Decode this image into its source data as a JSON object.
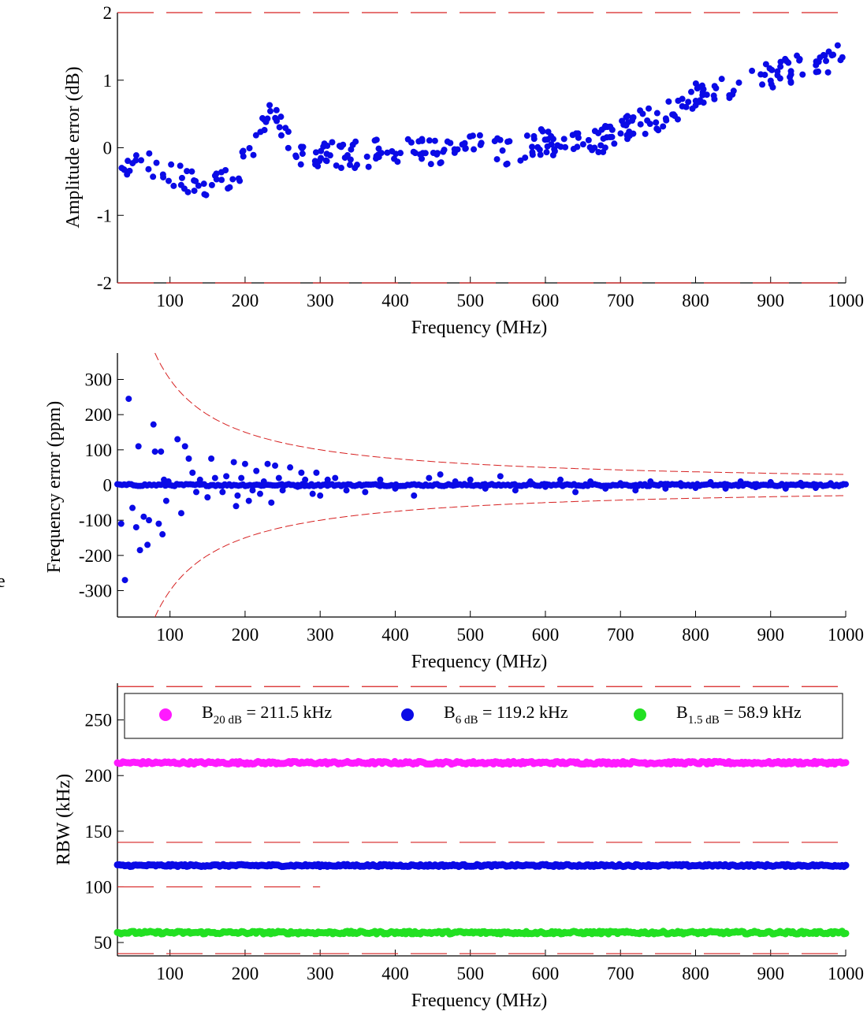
{
  "colors": {
    "limit_line": "#d62020",
    "blue": "#0a0ae6",
    "magenta": "#ff1aff",
    "green": "#22e022",
    "axis": "#000000"
  },
  "chart_data": [
    {
      "type": "scatter",
      "title": "",
      "xlabel": "Frequency (MHz)",
      "ylabel": "Amplitude error (dB)",
      "xlim": [
        30,
        1000
      ],
      "ylim": [
        -2,
        2
      ],
      "xticks": [
        100,
        200,
        300,
        400,
        500,
        600,
        700,
        800,
        900,
        1000
      ],
      "yticks": [
        -2,
        -1,
        0,
        1,
        2
      ],
      "grid": false,
      "color": "#0a0ae6",
      "limits": [
        2,
        -2
      ],
      "trend": [
        [
          30,
          -0.25
        ],
        [
          60,
          -0.25
        ],
        [
          100,
          -0.35
        ],
        [
          130,
          -0.55
        ],
        [
          160,
          -0.55
        ],
        [
          190,
          -0.35
        ],
        [
          210,
          0.05
        ],
        [
          225,
          0.4
        ],
        [
          235,
          0.55
        ],
        [
          250,
          0.25
        ],
        [
          270,
          -0.1
        ],
        [
          300,
          -0.1
        ],
        [
          350,
          -0.1
        ],
        [
          400,
          -0.05
        ],
        [
          450,
          -0.05
        ],
        [
          500,
          0.0
        ],
        [
          550,
          -0.05
        ],
        [
          600,
          0.1
        ],
        [
          650,
          0.0
        ],
        [
          700,
          0.25
        ],
        [
          750,
          0.45
        ],
        [
          800,
          0.75
        ],
        [
          850,
          0.95
        ],
        [
          900,
          1.05
        ],
        [
          950,
          1.25
        ],
        [
          1000,
          1.35
        ]
      ],
      "spread": 0.2,
      "n_points": 330
    },
    {
      "type": "scatter",
      "title": "",
      "xlabel": "Frequency (MHz)",
      "ylabel": "Frequency error (ppm)",
      "xlim": [
        30,
        1000
      ],
      "ylim": [
        -375,
        375
      ],
      "xticks": [
        100,
        200,
        300,
        400,
        500,
        600,
        700,
        800,
        900,
        1000
      ],
      "yticks": [
        -300,
        -200,
        -100,
        0,
        100,
        200,
        300
      ],
      "grid": false,
      "color": "#0a0ae6",
      "limit_curve": "±30000/f (ppm)",
      "limit_constant": 30000,
      "points": [
        [
          35,
          -110
        ],
        [
          45,
          245
        ],
        [
          40,
          -270
        ],
        [
          50,
          -65
        ],
        [
          58,
          110
        ],
        [
          55,
          -120
        ],
        [
          60,
          -185
        ],
        [
          65,
          -90
        ],
        [
          70,
          -170
        ],
        [
          72,
          -100
        ],
        [
          78,
          172
        ],
        [
          80,
          95
        ],
        [
          85,
          -110
        ],
        [
          88,
          95
        ],
        [
          90,
          -140
        ],
        [
          92,
          15
        ],
        [
          95,
          -45
        ],
        [
          98,
          10
        ],
        [
          110,
          130
        ],
        [
          115,
          -80
        ],
        [
          120,
          110
        ],
        [
          125,
          75
        ],
        [
          130,
          35
        ],
        [
          135,
          -20
        ],
        [
          140,
          15
        ],
        [
          150,
          -35
        ],
        [
          155,
          75
        ],
        [
          160,
          20
        ],
        [
          170,
          -20
        ],
        [
          175,
          25
        ],
        [
          185,
          65
        ],
        [
          188,
          -60
        ],
        [
          190,
          -30
        ],
        [
          195,
          20
        ],
        [
          200,
          60
        ],
        [
          205,
          -45
        ],
        [
          210,
          -15
        ],
        [
          215,
          40
        ],
        [
          220,
          -25
        ],
        [
          225,
          10
        ],
        [
          230,
          60
        ],
        [
          235,
          -50
        ],
        [
          240,
          55
        ],
        [
          245,
          20
        ],
        [
          250,
          -15
        ],
        [
          260,
          50
        ],
        [
          270,
          -5
        ],
        [
          275,
          35
        ],
        [
          280,
          15
        ],
        [
          290,
          -25
        ],
        [
          295,
          35
        ],
        [
          300,
          -30
        ],
        [
          310,
          15
        ],
        [
          320,
          20
        ],
        [
          335,
          -15
        ],
        [
          360,
          -20
        ],
        [
          380,
          15
        ],
        [
          400,
          -10
        ],
        [
          425,
          -30
        ],
        [
          445,
          20
        ],
        [
          460,
          30
        ],
        [
          480,
          10
        ],
        [
          500,
          15
        ],
        [
          520,
          -10
        ],
        [
          540,
          25
        ],
        [
          560,
          -15
        ],
        [
          580,
          10
        ],
        [
          600,
          -5
        ],
        [
          620,
          15
        ],
        [
          640,
          -20
        ],
        [
          660,
          10
        ],
        [
          680,
          -10
        ],
        [
          700,
          5
        ],
        [
          720,
          -15
        ],
        [
          740,
          10
        ],
        [
          760,
          -10
        ],
        [
          780,
          5
        ],
        [
          800,
          -8
        ],
        [
          820,
          8
        ],
        [
          840,
          -10
        ],
        [
          860,
          10
        ],
        [
          880,
          -6
        ],
        [
          900,
          8
        ],
        [
          920,
          -10
        ],
        [
          940,
          6
        ],
        [
          960,
          -8
        ],
        [
          980,
          5
        ],
        [
          995,
          0
        ]
      ],
      "zero_line_points": 320
    },
    {
      "type": "scatter",
      "title": "",
      "xlabel": "Frequency (MHz)",
      "ylabel": "RBW (kHz)",
      "xlim": [
        30,
        1000
      ],
      "ylim": [
        38,
        283
      ],
      "xticks": [
        100,
        200,
        300,
        400,
        500,
        600,
        700,
        800,
        900,
        1000
      ],
      "yticks": [
        50,
        100,
        150,
        200,
        250
      ],
      "grid": false,
      "legend_position": "top",
      "series": [
        {
          "name": "B",
          "sub": "20 dB",
          "value_text": " = 211.5 kHz",
          "mean": 211.5,
          "jitter": 1.2,
          "color": "#ff1aff",
          "n_points": 400
        },
        {
          "name": "B",
          "sub": "6 dB",
          "value_text": " = 119.2 kHz",
          "mean": 119.2,
          "jitter": 0.9,
          "color": "#0a0ae6",
          "n_points": 400
        },
        {
          "name": "B",
          "sub": "1.5 dB",
          "value_text": " = 58.9 kHz",
          "mean": 58.9,
          "jitter": 1.2,
          "color": "#22e022",
          "n_points": 400
        }
      ],
      "limit_lines": [
        {
          "y": 280,
          "x": [
            30,
            1000
          ]
        },
        {
          "y": 140,
          "x": [
            30,
            1000
          ]
        },
        {
          "y": 100,
          "x": [
            30,
            300
          ]
        },
        {
          "y": 40,
          "x": [
            30,
            1000
          ]
        }
      ]
    }
  ],
  "stray_label": "e"
}
